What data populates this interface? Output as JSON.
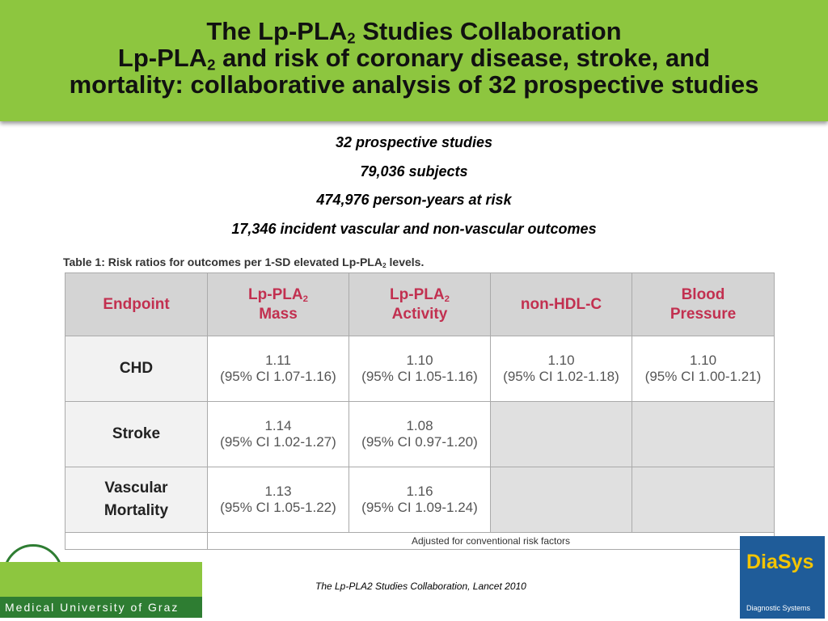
{
  "header": {
    "title_lines": [
      [
        "The Lp-PLA",
        "2",
        " Studies Collaboration"
      ],
      [
        "Lp-PLA",
        "2",
        " and risk of coronary disease, stroke, and"
      ],
      [
        "mortality: collaborative analysis of 32 prospective studies"
      ]
    ]
  },
  "summary": [
    "32 prospective studies",
    "79,036 subjects",
    "474,976 person-years at risk",
    "17,346 incident vascular and non-vascular outcomes"
  ],
  "table": {
    "caption": [
      "Table 1: Risk ratios for outcomes per 1-SD elevated Lp-PLA",
      "2",
      " levels."
    ],
    "headers": [
      [
        [
          "Endpoint"
        ]
      ],
      [
        [
          "Lp-PLA",
          "2"
        ],
        [
          "Mass"
        ]
      ],
      [
        [
          "Lp-PLA",
          "2"
        ],
        [
          "Activity"
        ]
      ],
      [
        [
          "non-HDL-C"
        ]
      ],
      [
        [
          "Blood"
        ],
        [
          "Pressure"
        ]
      ]
    ],
    "rows": [
      {
        "endpoint": [
          "CHD"
        ],
        "cells": [
          [
            "1.11",
            "(95% CI 1.07-1.16)"
          ],
          [
            "1.10",
            "(95% CI 1.05-1.16)"
          ],
          [
            "1.10",
            "(95% CI 1.02-1.18)"
          ],
          [
            "1.10",
            "(95% CI 1.00-1.21)"
          ]
        ]
      },
      {
        "endpoint": [
          "Stroke"
        ],
        "cells": [
          [
            "1.14",
            "(95% CI 1.02-1.27)"
          ],
          [
            "1.08",
            "(95% CI 0.97-1.20)"
          ],
          null,
          null
        ]
      },
      {
        "endpoint": [
          "Vascular",
          "Mortality"
        ],
        "cells": [
          [
            "1.13",
            "(95% CI 1.05-1.22)"
          ],
          [
            "1.16",
            "(95% CI 1.09-1.24)"
          ],
          null,
          null
        ]
      }
    ],
    "note": "Adjusted for conventional risk factors"
  },
  "citation": "The Lp-PLA2 Studies Collaboration, Lancet 2010",
  "logos": {
    "left": "Medical University of Graz",
    "right_name": "DiaSys",
    "right_tagline": "Diagnostic Systems"
  }
}
